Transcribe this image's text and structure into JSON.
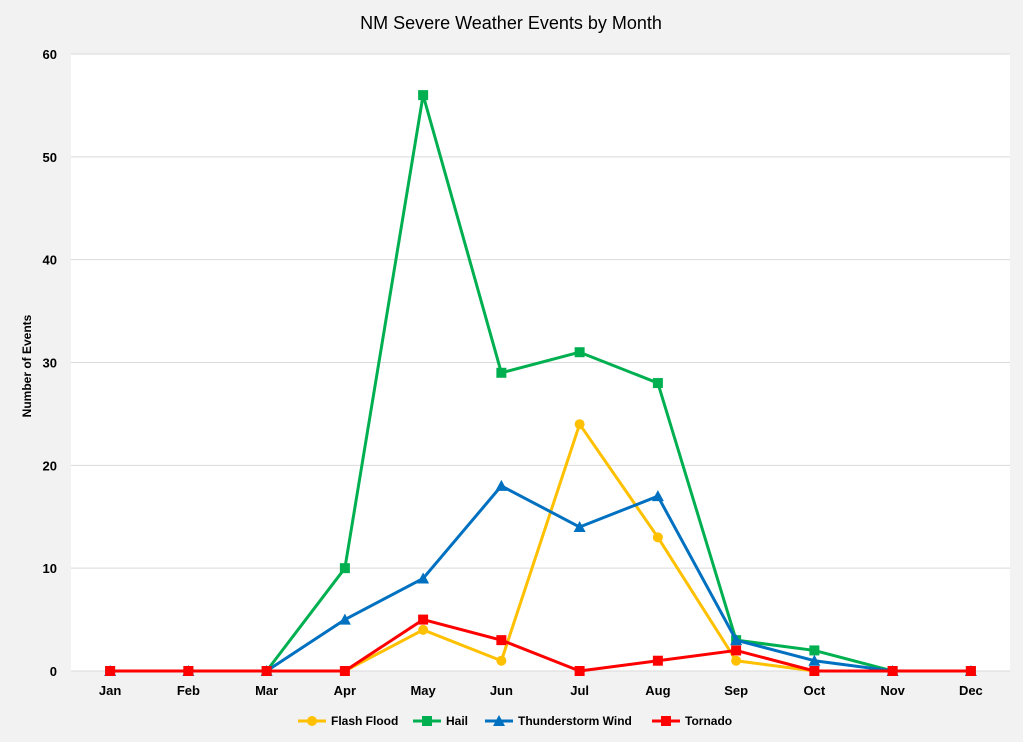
{
  "chart_data": {
    "type": "line",
    "title": "NM Severe Weather Events by Month",
    "xlabel": "",
    "ylabel": "Number of Events",
    "categories": [
      "Jan",
      "Feb",
      "Mar",
      "Apr",
      "May",
      "Jun",
      "Jul",
      "Aug",
      "Sep",
      "Oct",
      "Nov",
      "Dec"
    ],
    "ylim": [
      0,
      60
    ],
    "yticks": [
      0,
      10,
      20,
      30,
      40,
      50,
      60
    ],
    "grid": true,
    "legend": "bottom",
    "series": [
      {
        "name": "Flash Flood",
        "color": "#FFC000",
        "marker": "circle",
        "values": [
          0,
          0,
          0,
          0,
          4,
          1,
          24,
          13,
          1,
          0,
          0,
          0
        ]
      },
      {
        "name": "Hail",
        "color": "#00B050",
        "marker": "square",
        "values": [
          0,
          0,
          0,
          10,
          56,
          29,
          31,
          28,
          3,
          2,
          0,
          0
        ]
      },
      {
        "name": "Thunderstorm Wind",
        "color": "#0070C0",
        "marker": "triangle",
        "values": [
          0,
          0,
          0,
          5,
          9,
          18,
          14,
          17,
          3,
          1,
          0,
          0
        ]
      },
      {
        "name": "Tornado",
        "color": "#FF0000",
        "marker": "square",
        "values": [
          0,
          0,
          0,
          0,
          5,
          3,
          0,
          1,
          2,
          0,
          0,
          0
        ]
      }
    ]
  }
}
